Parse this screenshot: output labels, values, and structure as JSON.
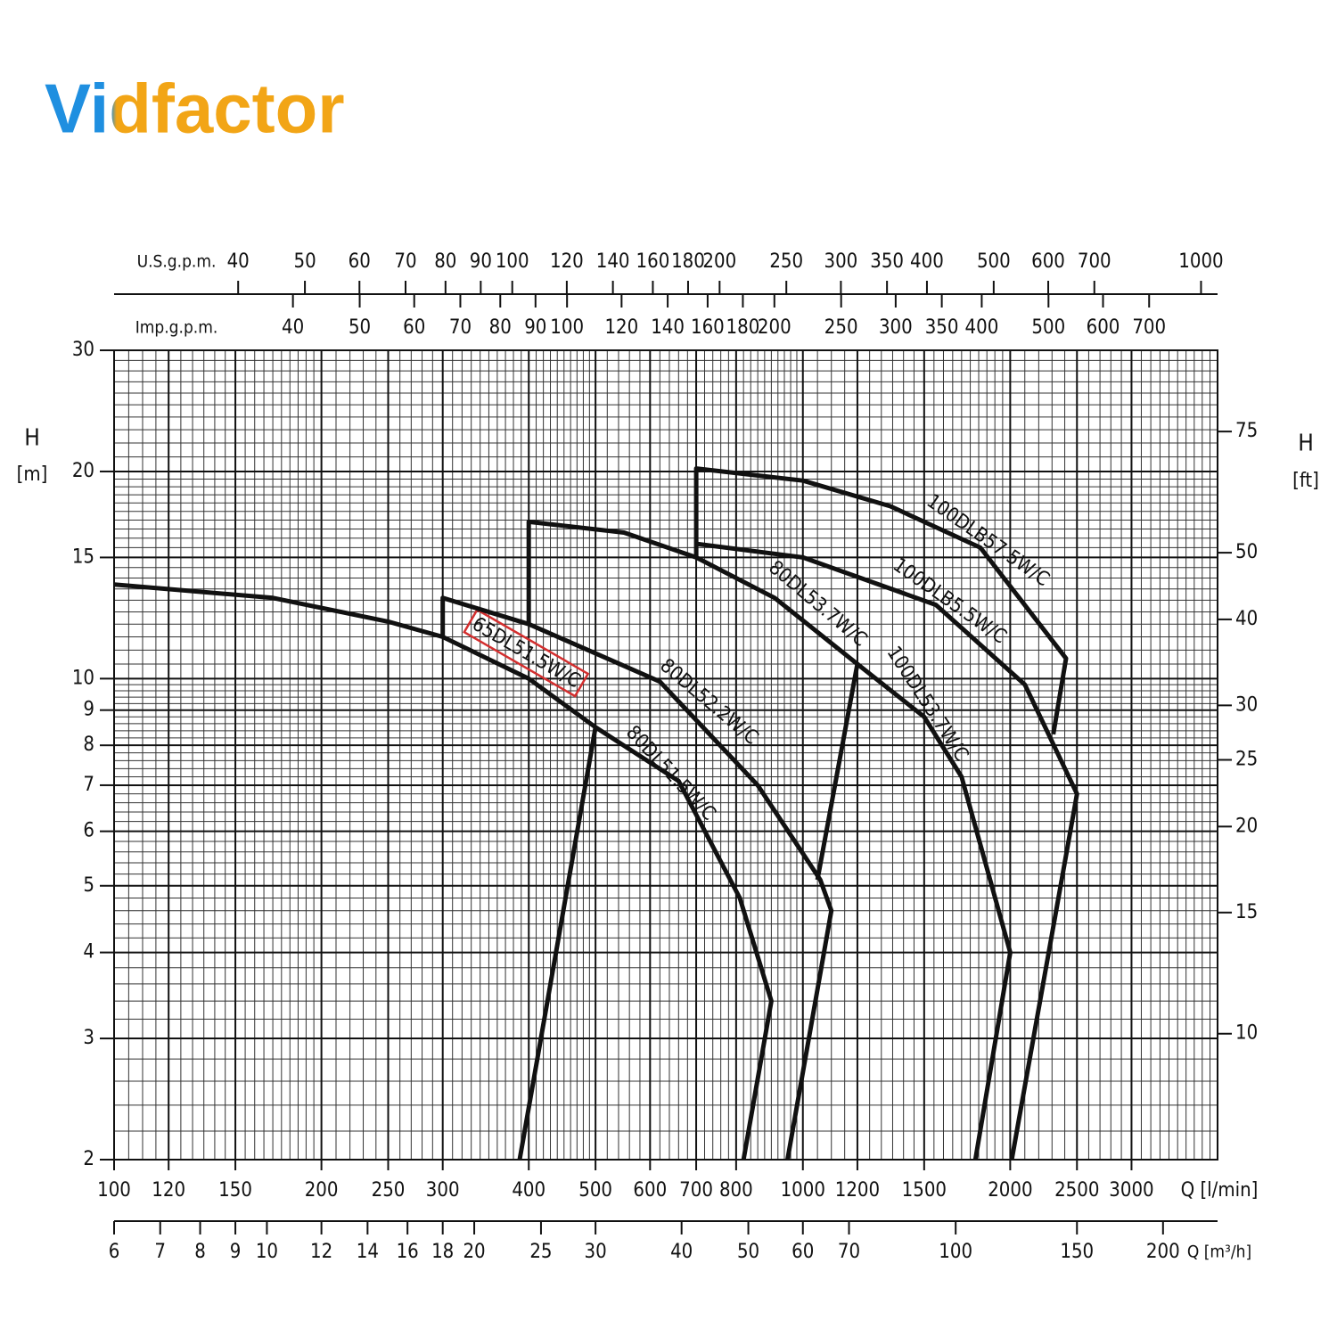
{
  "logo": "Vidfactor",
  "chart_data": {
    "type": "line",
    "xscale": "log",
    "yscale": "log",
    "grid": true,
    "xlabel": "Q [l/min]",
    "xlim": [
      100,
      4000
    ],
    "xticks": [
      100,
      120,
      150,
      200,
      250,
      300,
      400,
      500,
      600,
      700,
      800,
      1000,
      1200,
      1500,
      2000,
      2500,
      3000
    ],
    "x_minor_ticks": [
      105,
      110,
      115,
      125,
      130,
      135,
      140,
      145,
      155,
      160,
      165,
      170,
      175,
      180,
      185,
      190,
      195,
      210,
      220,
      230,
      240,
      260,
      270,
      280,
      290,
      310,
      320,
      330,
      340,
      350,
      360,
      370,
      380,
      390,
      410,
      420,
      430,
      440,
      450,
      460,
      470,
      480,
      490,
      520,
      540,
      560,
      580,
      620,
      640,
      660,
      680,
      720,
      740,
      760,
      780,
      820,
      840,
      860,
      880,
      900,
      920,
      940,
      960,
      980,
      1050,
      1100,
      1150,
      1250,
      1300,
      1350,
      1400,
      1450,
      1550,
      1600,
      1650,
      1700,
      1750,
      1800,
      1850,
      1900,
      1950,
      2100,
      2200,
      2300,
      2400,
      2600,
      2700,
      2800,
      2900,
      3100,
      3200,
      3300,
      3400,
      3500,
      3600,
      3700,
      3800,
      3900
    ],
    "ylabel": "H",
    "yunit": "[m]",
    "ylim": [
      2,
      30
    ],
    "yticks": [
      2,
      3,
      4,
      5,
      6,
      7,
      8,
      9,
      10,
      15,
      20,
      30
    ],
    "y_minor_ticks": [
      2.2,
      2.4,
      2.6,
      2.8,
      3.2,
      3.4,
      3.6,
      3.8,
      4.2,
      4.4,
      4.6,
      4.8,
      5.2,
      5.4,
      5.6,
      5.8,
      6.2,
      6.4,
      6.6,
      6.8,
      7.2,
      7.4,
      7.6,
      7.8,
      8.2,
      8.4,
      8.6,
      8.8,
      9.2,
      9.4,
      9.6,
      9.8,
      10.5,
      11,
      11.5,
      12,
      12.5,
      13,
      13.5,
      14,
      14.5,
      15.5,
      16,
      16.5,
      17,
      17.5,
      18,
      18.5,
      19,
      19.5,
      21,
      22,
      23,
      24,
      25,
      26,
      27,
      28,
      29
    ],
    "y2label": "H",
    "y2unit": "[ft]",
    "y2lim": [
      6.562,
      98.425
    ],
    "y2ticks": [
      10,
      15,
      20,
      25,
      30,
      40,
      50,
      75
    ],
    "secondary_x_axes": [
      {
        "label": "Q [m³/h]",
        "position": "bottom",
        "xlim": [
          6,
          240
        ],
        "xticks": [
          6,
          7,
          8,
          9,
          10,
          12,
          14,
          16,
          18,
          20,
          25,
          30,
          40,
          50,
          60,
          70,
          100,
          150,
          200
        ]
      },
      {
        "label": "U.S.g.p.m.",
        "position": "top",
        "xlim": [
          26.42,
          1056.8
        ],
        "xticks": [
          40,
          50,
          60,
          70,
          80,
          90,
          100,
          120,
          140,
          160,
          180,
          200,
          250,
          300,
          350,
          400,
          500,
          600,
          700,
          1000
        ]
      },
      {
        "label": "Imp.g.p.m.",
        "position": "top",
        "xlim": [
          22.0,
          879.9
        ],
        "xticks": [
          40,
          50,
          60,
          70,
          80,
          90,
          100,
          120,
          140,
          160,
          180,
          200,
          250,
          300,
          350,
          400,
          500,
          600,
          700
        ]
      }
    ],
    "series": [
      {
        "name": "65DL51.5W/C",
        "color": "#111111",
        "highlight": "#d32f2f",
        "x": [
          100,
          170,
          250,
          300,
          400,
          500
        ],
        "values": [
          13.7,
          13.1,
          12.1,
          11.5,
          10,
          8.5
        ]
      },
      {
        "name": "80DL51.5W/C",
        "color": "#111111",
        "x": [
          388,
          500,
          660,
          810,
          900,
          820
        ],
        "values": [
          2,
          8.5,
          7.1,
          4.8,
          3.4,
          2
        ]
      },
      {
        "name": "80DL52.2W/C",
        "color": "#111111",
        "x": [
          300,
          300,
          400,
          620,
          860,
          1060,
          1100,
          950
        ],
        "values": [
          11.5,
          13.1,
          12,
          9.9,
          7,
          5.1,
          4.6,
          2
        ]
      },
      {
        "name": "80DL53.7W/C",
        "color": "#111111",
        "x": [
          400,
          400,
          550,
          700,
          910,
          1200,
          1050
        ],
        "values": [
          12,
          16.9,
          16.3,
          15,
          13.1,
          10.5,
          5.1
        ]
      },
      {
        "name": "100DL53.7W/C",
        "color": "#111111",
        "x": [
          1200,
          1500,
          1700,
          2000,
          1780
        ],
        "values": [
          10.5,
          8.8,
          7.2,
          4,
          2
        ]
      },
      {
        "name": "100DLB5.5W/C",
        "color": "#111111",
        "x": [
          700,
          1000,
          1560,
          2100,
          2500,
          2010
        ],
        "values": [
          15.7,
          15,
          12.8,
          9.8,
          6.8,
          2
        ]
      },
      {
        "name": "100DLB57.5W/C",
        "color": "#111111",
        "x": [
          700,
          700,
          1000,
          1340,
          1810,
          2410,
          2310
        ],
        "values": [
          15,
          20.2,
          19.4,
          17.8,
          15.5,
          10.7,
          8.3
        ]
      }
    ]
  }
}
